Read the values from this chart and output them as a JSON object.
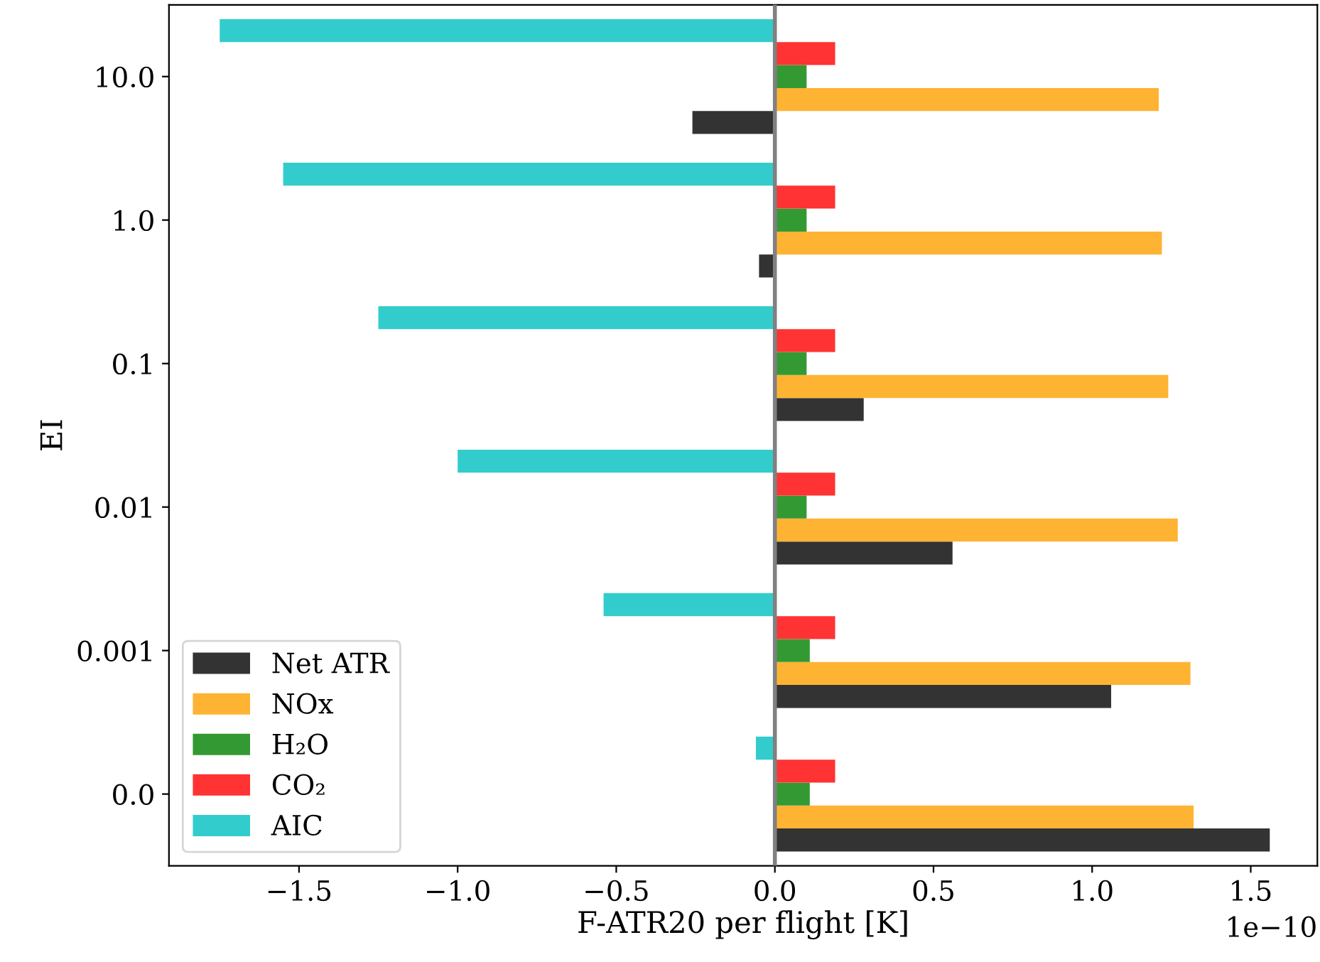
{
  "chart_data": {
    "type": "bar",
    "orientation": "horizontal",
    "xlabel": "F-ATR20 per flight [K]",
    "ylabel": "EI",
    "categories": [
      "10.0",
      "1.0",
      "0.1",
      "0.01",
      "0.001",
      "0.0"
    ],
    "series": [
      {
        "name": "Net ATR",
        "color": "#333333",
        "values": [
          -0.26,
          -0.05,
          0.28,
          0.56,
          1.06,
          1.56
        ]
      },
      {
        "name": "NOx",
        "color": "#ffb333",
        "values": [
          1.21,
          1.22,
          1.24,
          1.27,
          1.31,
          1.32
        ]
      },
      {
        "name": "H₂O",
        "color": "#339933",
        "values": [
          0.1,
          0.1,
          0.1,
          0.1,
          0.11,
          0.11
        ]
      },
      {
        "name": "CO₂",
        "color": "#ff3333",
        "values": [
          0.19,
          0.19,
          0.19,
          0.19,
          0.19,
          0.19
        ]
      },
      {
        "name": "AIC",
        "color": "#33cccc",
        "values": [
          -1.75,
          -1.55,
          -1.25,
          -1.0,
          -0.54,
          -0.06
        ]
      }
    ],
    "xlim": [
      -1.91,
      1.71
    ],
    "xticks": [
      {
        "value": -1.5,
        "label": "−1.5"
      },
      {
        "value": -1.0,
        "label": "−1.0"
      },
      {
        "value": -0.5,
        "label": "−0.5"
      },
      {
        "value": 0.0,
        "label": "0.0"
      },
      {
        "value": 0.5,
        "label": "0.5"
      },
      {
        "value": 1.0,
        "label": "1.0"
      },
      {
        "value": 1.5,
        "label": "1.5"
      }
    ],
    "ref_lines": [
      {
        "axis": "x",
        "value": 0,
        "color": "#808080"
      }
    ],
    "annotations": [
      "1e−10"
    ],
    "legend": "bottom left",
    "grid": false
  }
}
